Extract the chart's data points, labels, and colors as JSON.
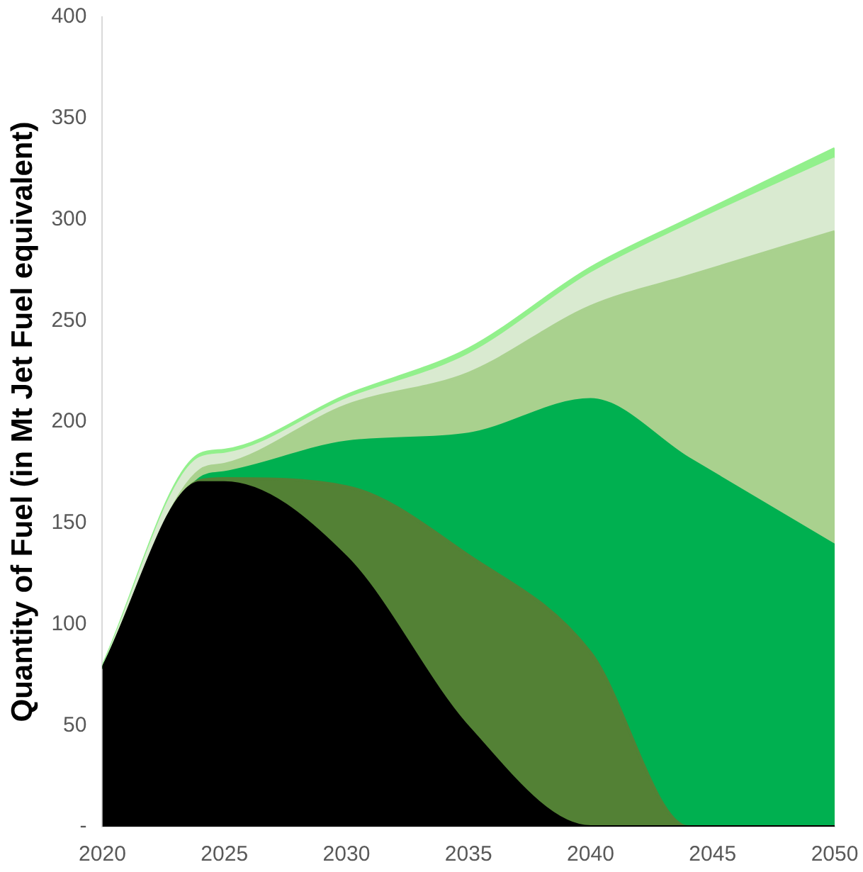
{
  "chart_data": {
    "type": "area",
    "stacked": true,
    "ylabel": "Quantity of Fuel (in Mt Jet Fuel equivalent)",
    "x": [
      2020,
      2024,
      2025,
      2030,
      2035,
      2040,
      2044,
      2050
    ],
    "series": [
      {
        "color": "#000000",
        "values": [
          78,
          170,
          170,
          133,
          49,
          0,
          0,
          0
        ]
      },
      {
        "color": "#538135",
        "values": [
          0,
          1,
          2,
          35,
          85,
          86,
          0,
          0
        ]
      },
      {
        "color": "#00b050",
        "values": [
          0,
          1,
          3,
          22,
          60,
          125,
          182,
          139
        ]
      },
      {
        "color": "#a9d18e",
        "values": [
          0,
          4,
          4,
          18,
          30,
          46,
          90,
          155
        ]
      },
      {
        "color": "#d9ead0",
        "values": [
          0,
          6,
          5,
          3,
          9,
          16,
          25,
          36
        ]
      },
      {
        "color": "#92f08c",
        "values": [
          1,
          2,
          2,
          2,
          3,
          3,
          3,
          5
        ]
      }
    ],
    "xlim": [
      2020,
      2050
    ],
    "xticks": [
      2020,
      2025,
      2030,
      2035,
      2040,
      2045,
      2050
    ],
    "ylim": [
      0,
      400
    ],
    "yticks": [
      {
        "value": 0,
        "label": "-"
      },
      50,
      100,
      150,
      200,
      250,
      300,
      350,
      400
    ],
    "grid": false,
    "legend": false
  }
}
